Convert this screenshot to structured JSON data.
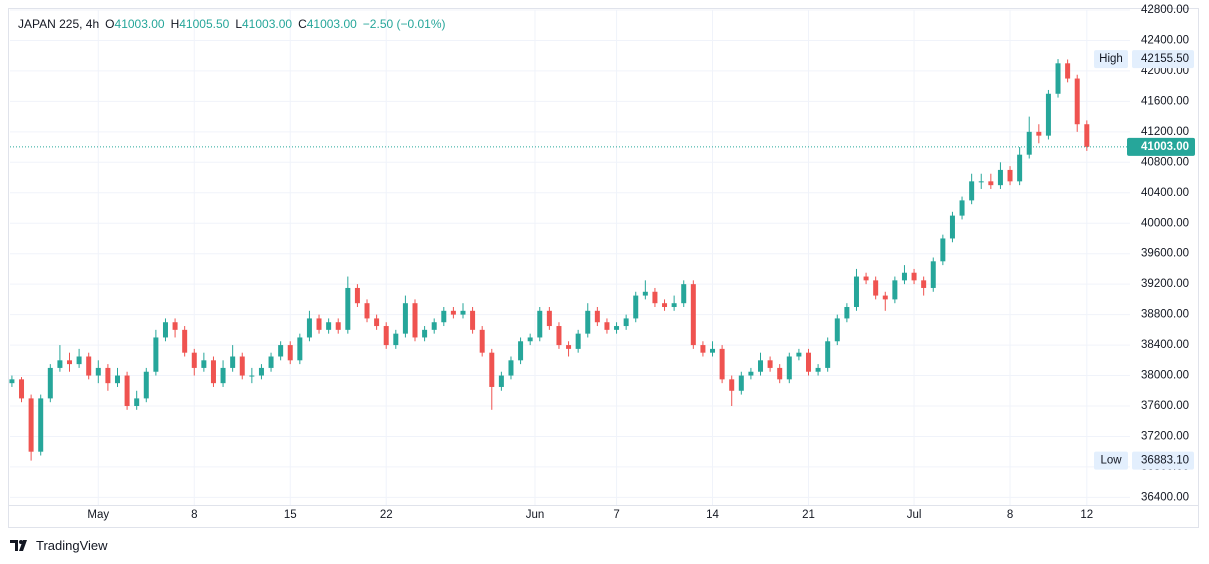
{
  "chart_data": {
    "type": "candlestick",
    "header": {
      "symbol": "JAPAN 225, 4h",
      "open_label": "O",
      "open": "41003.00",
      "high_label": "H",
      "high": "41005.50",
      "low_label": "L",
      "low": "41003.00",
      "close_label": "C",
      "close": "41003.00",
      "change": "−2.50 (−0.01%)"
    },
    "up_color": "#26a69a",
    "down_color": "#ef5350",
    "x": [
      0,
      1,
      2,
      3,
      4,
      5,
      6,
      7,
      8,
      9,
      10,
      11,
      12,
      13,
      14,
      15,
      16,
      17,
      18,
      19,
      20,
      21,
      22,
      23,
      24,
      25,
      26,
      27,
      28,
      29,
      30,
      31,
      32,
      33,
      34,
      35,
      36,
      37,
      38,
      39,
      40,
      41,
      42,
      43,
      44,
      45,
      46,
      47,
      48,
      49,
      50,
      51,
      52,
      53,
      54,
      55,
      56,
      57,
      58,
      59,
      60,
      61,
      62,
      63,
      64,
      65,
      66,
      67,
      68,
      69,
      70,
      71,
      72,
      73,
      74,
      75,
      76,
      77,
      78,
      79,
      80,
      81,
      82,
      83,
      84,
      85,
      86,
      87,
      88,
      89,
      90,
      91,
      92,
      93,
      94,
      95,
      96,
      97,
      98,
      99,
      100,
      101,
      102,
      103,
      104,
      105,
      106,
      107,
      108,
      109,
      110,
      111,
      112
    ],
    "ohlc": [
      [
        37900,
        38000,
        37850,
        37950
      ],
      [
        37950,
        37980,
        37650,
        37700
      ],
      [
        37700,
        37750,
        36883.1,
        37000
      ],
      [
        37000,
        37750,
        36950,
        37700
      ],
      [
        37700,
        38150,
        37650,
        38100
      ],
      [
        38100,
        38400,
        38050,
        38200
      ],
      [
        38200,
        38300,
        38050,
        38150
      ],
      [
        38150,
        38350,
        38100,
        38250
      ],
      [
        38250,
        38300,
        37950,
        38000
      ],
      [
        38000,
        38200,
        37900,
        38100
      ],
      [
        38100,
        38150,
        37800,
        37900
      ],
      [
        37900,
        38100,
        37850,
        38000
      ],
      [
        38000,
        38050,
        37550,
        37600
      ],
      [
        37600,
        37800,
        37550,
        37700
      ],
      [
        37700,
        38100,
        37650,
        38050
      ],
      [
        38050,
        38600,
        38000,
        38500
      ],
      [
        38500,
        38750,
        38450,
        38700
      ],
      [
        38700,
        38750,
        38500,
        38600
      ],
      [
        38600,
        38650,
        38250,
        38300
      ],
      [
        38300,
        38350,
        38000,
        38100
      ],
      [
        38100,
        38300,
        38050,
        38200
      ],
      [
        38200,
        38250,
        37850,
        37900
      ],
      [
        37900,
        38200,
        37850,
        38100
      ],
      [
        38100,
        38400,
        38050,
        38250
      ],
      [
        38250,
        38300,
        37950,
        38000
      ],
      [
        38000,
        38100,
        37900,
        38000
      ],
      [
        38000,
        38150,
        37950,
        38100
      ],
      [
        38100,
        38300,
        38050,
        38250
      ],
      [
        38250,
        38450,
        38200,
        38400
      ],
      [
        38400,
        38450,
        38150,
        38200
      ],
      [
        38200,
        38550,
        38150,
        38500
      ],
      [
        38500,
        38850,
        38450,
        38750
      ],
      [
        38750,
        38800,
        38550,
        38600
      ],
      [
        38600,
        38750,
        38550,
        38700
      ],
      [
        38700,
        38750,
        38550,
        38600
      ],
      [
        38600,
        39300,
        38550,
        39150
      ],
      [
        39150,
        39200,
        38900,
        38950
      ],
      [
        38950,
        39000,
        38700,
        38750
      ],
      [
        38750,
        38800,
        38600,
        38650
      ],
      [
        38650,
        38700,
        38350,
        38400
      ],
      [
        38400,
        38600,
        38350,
        38550
      ],
      [
        38550,
        39050,
        38500,
        38950
      ],
      [
        38950,
        39000,
        38450,
        38500
      ],
      [
        38500,
        38650,
        38450,
        38600
      ],
      [
        38600,
        38750,
        38550,
        38700
      ],
      [
        38700,
        38900,
        38650,
        38850
      ],
      [
        38850,
        38900,
        38750,
        38800
      ],
      [
        38800,
        38950,
        38750,
        38850
      ],
      [
        38850,
        38900,
        38550,
        38600
      ],
      [
        38600,
        38650,
        38250,
        38300
      ],
      [
        38300,
        38350,
        37550,
        37850
      ],
      [
        37850,
        38050,
        37800,
        38000
      ],
      [
        38000,
        38250,
        37950,
        38200
      ],
      [
        38200,
        38500,
        38150,
        38450
      ],
      [
        38450,
        38550,
        38400,
        38500
      ],
      [
        38500,
        38900,
        38450,
        38850
      ],
      [
        38850,
        38900,
        38600,
        38650
      ],
      [
        38650,
        38700,
        38350,
        38400
      ],
      [
        38400,
        38450,
        38250,
        38350
      ],
      [
        38350,
        38600,
        38300,
        38550
      ],
      [
        38550,
        38950,
        38500,
        38850
      ],
      [
        38850,
        38900,
        38650,
        38700
      ],
      [
        38700,
        38750,
        38550,
        38600
      ],
      [
        38600,
        38700,
        38550,
        38650
      ],
      [
        38650,
        38800,
        38600,
        38750
      ],
      [
        38750,
        39100,
        38700,
        39050
      ],
      [
        39050,
        39250,
        39000,
        39100
      ],
      [
        39100,
        39150,
        38900,
        38950
      ],
      [
        38950,
        39000,
        38850,
        38900
      ],
      [
        38900,
        39050,
        38850,
        38950
      ],
      [
        38950,
        39250,
        38900,
        39200
      ],
      [
        39200,
        39250,
        38350,
        38400
      ],
      [
        38400,
        38450,
        38250,
        38300
      ],
      [
        38300,
        38450,
        38250,
        38350
      ],
      [
        38350,
        38400,
        37900,
        37950
      ],
      [
        37950,
        38000,
        37600,
        37800
      ],
      [
        37800,
        38050,
        37750,
        38000
      ],
      [
        38000,
        38100,
        37950,
        38050
      ],
      [
        38050,
        38300,
        38000,
        38200
      ],
      [
        38200,
        38250,
        38050,
        38100
      ],
      [
        38100,
        38150,
        37900,
        37950
      ],
      [
        37950,
        38300,
        37900,
        38250
      ],
      [
        38250,
        38350,
        38200,
        38300
      ],
      [
        38300,
        38350,
        38000,
        38050
      ],
      [
        38050,
        38150,
        38000,
        38100
      ],
      [
        38100,
        38500,
        38050,
        38450
      ],
      [
        38450,
        38800,
        38400,
        38750
      ],
      [
        38750,
        38950,
        38700,
        38900
      ],
      [
        38900,
        39400,
        38850,
        39300
      ],
      [
        39300,
        39350,
        39200,
        39250
      ],
      [
        39250,
        39300,
        39000,
        39050
      ],
      [
        39050,
        39100,
        38850,
        39000
      ],
      [
        39000,
        39300,
        38950,
        39250
      ],
      [
        39250,
        39450,
        39200,
        39350
      ],
      [
        39350,
        39400,
        39200,
        39250
      ],
      [
        39250,
        39300,
        39050,
        39150
      ],
      [
        39150,
        39550,
        39100,
        39500
      ],
      [
        39500,
        39850,
        39450,
        39800
      ],
      [
        39800,
        40150,
        39750,
        40100
      ],
      [
        40100,
        40350,
        40050,
        40300
      ],
      [
        40300,
        40650,
        40250,
        40550
      ],
      [
        40550,
        40650,
        40450,
        40550
      ],
      [
        40550,
        40650,
        40450,
        40500
      ],
      [
        40500,
        40800,
        40450,
        40700
      ],
      [
        40700,
        40750,
        40500,
        40550
      ],
      [
        40550,
        41000,
        40500,
        40900
      ],
      [
        40900,
        41400,
        40850,
        41200
      ],
      [
        41200,
        41300,
        41050,
        41150
      ],
      [
        41150,
        41750,
        41100,
        41700
      ],
      [
        41700,
        42155.5,
        41650,
        42100
      ],
      [
        42100,
        42150,
        41850,
        41900
      ],
      [
        41900,
        41950,
        41200,
        41300
      ],
      [
        41300,
        41350,
        40950,
        41003
      ]
    ],
    "xlim": [
      -0.2,
      116.5
    ],
    "xticks": [
      {
        "value": 9,
        "label": "May"
      },
      {
        "value": 19,
        "label": "8"
      },
      {
        "value": 29,
        "label": "15"
      },
      {
        "value": 39,
        "label": "22"
      },
      {
        "value": 54.5,
        "label": "Jun"
      },
      {
        "value": 63,
        "label": "7"
      },
      {
        "value": 73,
        "label": "14"
      },
      {
        "value": 83,
        "label": "21"
      },
      {
        "value": 94,
        "label": "Jul"
      },
      {
        "value": 104,
        "label": "8"
      },
      {
        "value": 112,
        "label": "12"
      }
    ],
    "ylim": [
      36300,
      42800
    ],
    "yticks": [
      {
        "value": 36400,
        "label": "36400.00"
      },
      {
        "value": 36800,
        "label": "36800.00"
      },
      {
        "value": 37200,
        "label": "37200.00"
      },
      {
        "value": 37600,
        "label": "37600.00"
      },
      {
        "value": 38000,
        "label": "38000.00"
      },
      {
        "value": 38400,
        "label": "38400.00"
      },
      {
        "value": 38800,
        "label": "38800.00"
      },
      {
        "value": 39200,
        "label": "39200.00"
      },
      {
        "value": 39600,
        "label": "39600.00"
      },
      {
        "value": 40000,
        "label": "40000.00"
      },
      {
        "value": 40400,
        "label": "40400.00"
      },
      {
        "value": 40800,
        "label": "40800.00"
      },
      {
        "value": 41200,
        "label": "41200.00"
      },
      {
        "value": 41600,
        "label": "41600.00"
      },
      {
        "value": 42000,
        "label": "42000.00"
      },
      {
        "value": 42400,
        "label": "42400.00"
      },
      {
        "value": 42800,
        "label": "42800.00"
      }
    ],
    "grid": true,
    "last_price": {
      "value": 41003,
      "label": "41003.00"
    },
    "high_marker": {
      "name": "High",
      "value": 42155.5,
      "label": "42155.50"
    },
    "low_marker": {
      "name": "Low",
      "value": 36883.1,
      "label": "36883.10"
    },
    "brand": "TradingView"
  }
}
